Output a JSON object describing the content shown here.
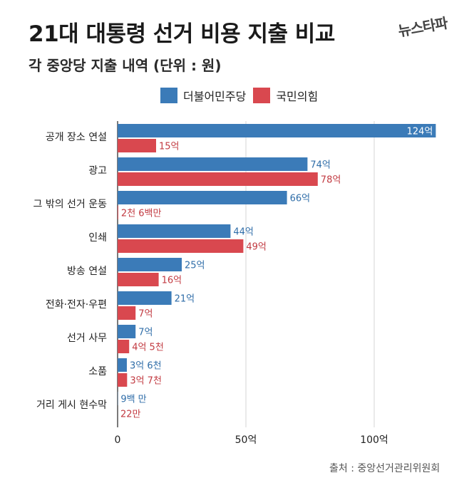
{
  "header": {
    "title": "21대 대통령 선거 비용 지출 비교",
    "subtitle": "각 중앙당 지출 내역 (단위 : 원)",
    "brand": "뉴스타파"
  },
  "source": "출처 : 중앙선거관리위원회",
  "colors": {
    "democratic": "#3b7bb8",
    "ppp": "#d9484f"
  },
  "chart_data": {
    "type": "bar",
    "orientation": "horizontal",
    "unit": "억 원",
    "categories": [
      "공개 장소 연설",
      "광고",
      "그 밖의 선거 운동",
      "인쇄",
      "방송 연설",
      "전화·전자·우편",
      "선거 사무",
      "소품",
      "거리 게시 현수막"
    ],
    "series": [
      {
        "name": "더불어민주당",
        "color": "#3b7bb8",
        "values": [
          124,
          74,
          66,
          44,
          25,
          21,
          7,
          3.6,
          0.09
        ],
        "labels": [
          "124억",
          "74억",
          "66억",
          "44억",
          "25억",
          "21억",
          "7억",
          "3억 6천",
          "9백 만"
        ]
      },
      {
        "name": "국민의힘",
        "color": "#d9484f",
        "values": [
          15,
          78,
          0.26,
          49,
          16,
          7,
          4.5,
          3.7,
          0.0022
        ],
        "labels": [
          "15억",
          "78억",
          "2천 6백만",
          "49억",
          "16억",
          "7억",
          "4억 5천",
          "3억 7천",
          "22만"
        ]
      }
    ],
    "xlim": [
      0,
      125
    ],
    "xticks": [
      0,
      50,
      100
    ],
    "xtick_labels": [
      "0",
      "50억",
      "100억"
    ],
    "grid": true,
    "legend_position": "top"
  }
}
